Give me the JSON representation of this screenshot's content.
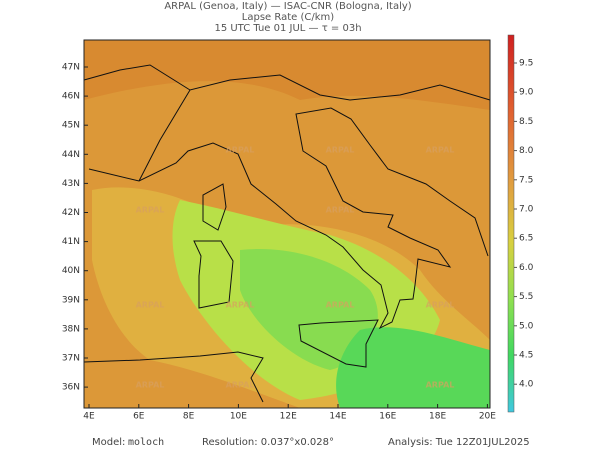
{
  "header": {
    "line1": "ARPAL (Genoa, Italy)  —  ISAC-CNR (Bologna, Italy)",
    "line2": "Lapse Rate (C/km)",
    "line3": "15 UTC Tue 01 JUL  —  τ = 03h"
  },
  "map": {
    "lon_ticks": [
      {
        "value": 4,
        "label": "4E"
      },
      {
        "value": 6,
        "label": "6E"
      },
      {
        "value": 8,
        "label": "8E"
      },
      {
        "value": 10,
        "label": "10E"
      },
      {
        "value": 12,
        "label": "12E"
      },
      {
        "value": 14,
        "label": "14E"
      },
      {
        "value": 16,
        "label": "16E"
      },
      {
        "value": 18,
        "label": "18E"
      },
      {
        "value": 20,
        "label": "20E"
      }
    ],
    "lat_ticks": [
      {
        "value": 47,
        "label": "47N"
      },
      {
        "value": 46,
        "label": "46N"
      },
      {
        "value": 45,
        "label": "45N"
      },
      {
        "value": 44,
        "label": "44N"
      },
      {
        "value": 43,
        "label": "43N"
      },
      {
        "value": 42,
        "label": "42N"
      },
      {
        "value": 41,
        "label": "41N"
      },
      {
        "value": 40,
        "label": "40N"
      },
      {
        "value": 39,
        "label": "39N"
      },
      {
        "value": 38,
        "label": "38N"
      },
      {
        "value": 37,
        "label": "37N"
      },
      {
        "value": 36,
        "label": "36N"
      }
    ],
    "watermark": "ARPAL"
  },
  "colorbar": {
    "ticks": [
      {
        "value": 9.5,
        "label": "9.5"
      },
      {
        "value": 9,
        "label": "9.0"
      },
      {
        "value": 8.5,
        "label": "8.5"
      },
      {
        "value": 8,
        "label": "8.0"
      },
      {
        "value": 7.5,
        "label": "7.5"
      },
      {
        "value": 7,
        "label": "7.0"
      },
      {
        "value": 6.5,
        "label": "6.5"
      },
      {
        "value": 6,
        "label": "6.0"
      },
      {
        "value": 5.5,
        "label": "5.5"
      },
      {
        "value": 5,
        "label": "5.0"
      },
      {
        "value": 4.5,
        "label": "4.5"
      },
      {
        "value": 4,
        "label": "4.0"
      }
    ]
  },
  "footer": {
    "model_label": "Model:",
    "model": "moloch",
    "resolution": "Resolution: 0.037°x0.028°",
    "analysis": "Analysis: Tue 12Z01JUL2025"
  }
}
